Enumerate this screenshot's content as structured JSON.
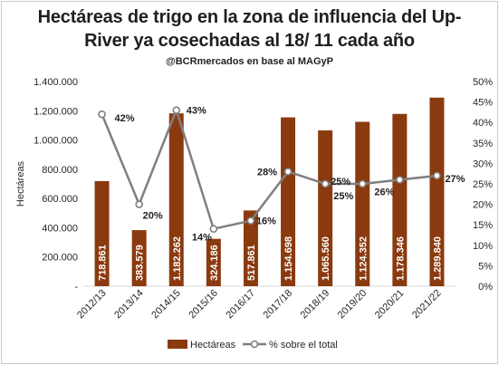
{
  "header": {
    "title_line1": "Hectáreas de trigo en la zona de influencia del Up-",
    "title_line2": "River ya cosechadas al 18/ 11 cada año",
    "subtitle": "@BCRmercados en base al MAGyP"
  },
  "chart_data": {
    "type": "bar",
    "title": "Hectáreas de trigo en la zona de influencia del Up-River ya cosechadas al 18/ 11 cada año",
    "subtitle": "@BCRmercados en base al MAGyP",
    "categories": [
      "2012/13",
      "2013/14",
      "2014/15",
      "2015/16",
      "2016/17",
      "2017/18",
      "2018/19",
      "2019/20",
      "2020/21",
      "2021/22"
    ],
    "series": [
      {
        "name": "Hectáreas",
        "type": "bar",
        "axis": "left",
        "color": "#8b3a0f",
        "values": [
          718861,
          383579,
          1182262,
          324186,
          517861,
          1154698,
          1065560,
          1124352,
          1178346,
          1289840
        ],
        "labels": [
          "718.861",
          "383.579",
          "1.182.262",
          "324.186",
          "517.861",
          "1.154.698",
          "1.065.560",
          "1.124.352",
          "1.178.346",
          "1.289.840"
        ]
      },
      {
        "name": "% sobre el total",
        "type": "line",
        "axis": "right",
        "color": "#7f7f7f",
        "values": [
          42,
          20,
          43,
          14,
          16,
          28,
          25,
          25,
          26,
          27
        ],
        "labels": [
          "42%",
          "20%",
          "43%",
          "14%",
          "16%",
          "28%",
          "25%",
          "25%",
          "26%",
          "27%"
        ]
      }
    ],
    "ylabel": "Hectáreas",
    "ylim": [
      0,
      1400000
    ],
    "y_ticks": [
      "-",
      "200.000",
      "400.000",
      "600.000",
      "800.000",
      "1.000.000",
      "1.200.000",
      "1.400.000"
    ],
    "y2lim": [
      0,
      50
    ],
    "y2_ticks": [
      "0%",
      "5%",
      "10%",
      "15%",
      "20%",
      "25%",
      "30%",
      "35%",
      "40%",
      "45%",
      "50%"
    ],
    "grid": false,
    "legend": "bottom"
  }
}
